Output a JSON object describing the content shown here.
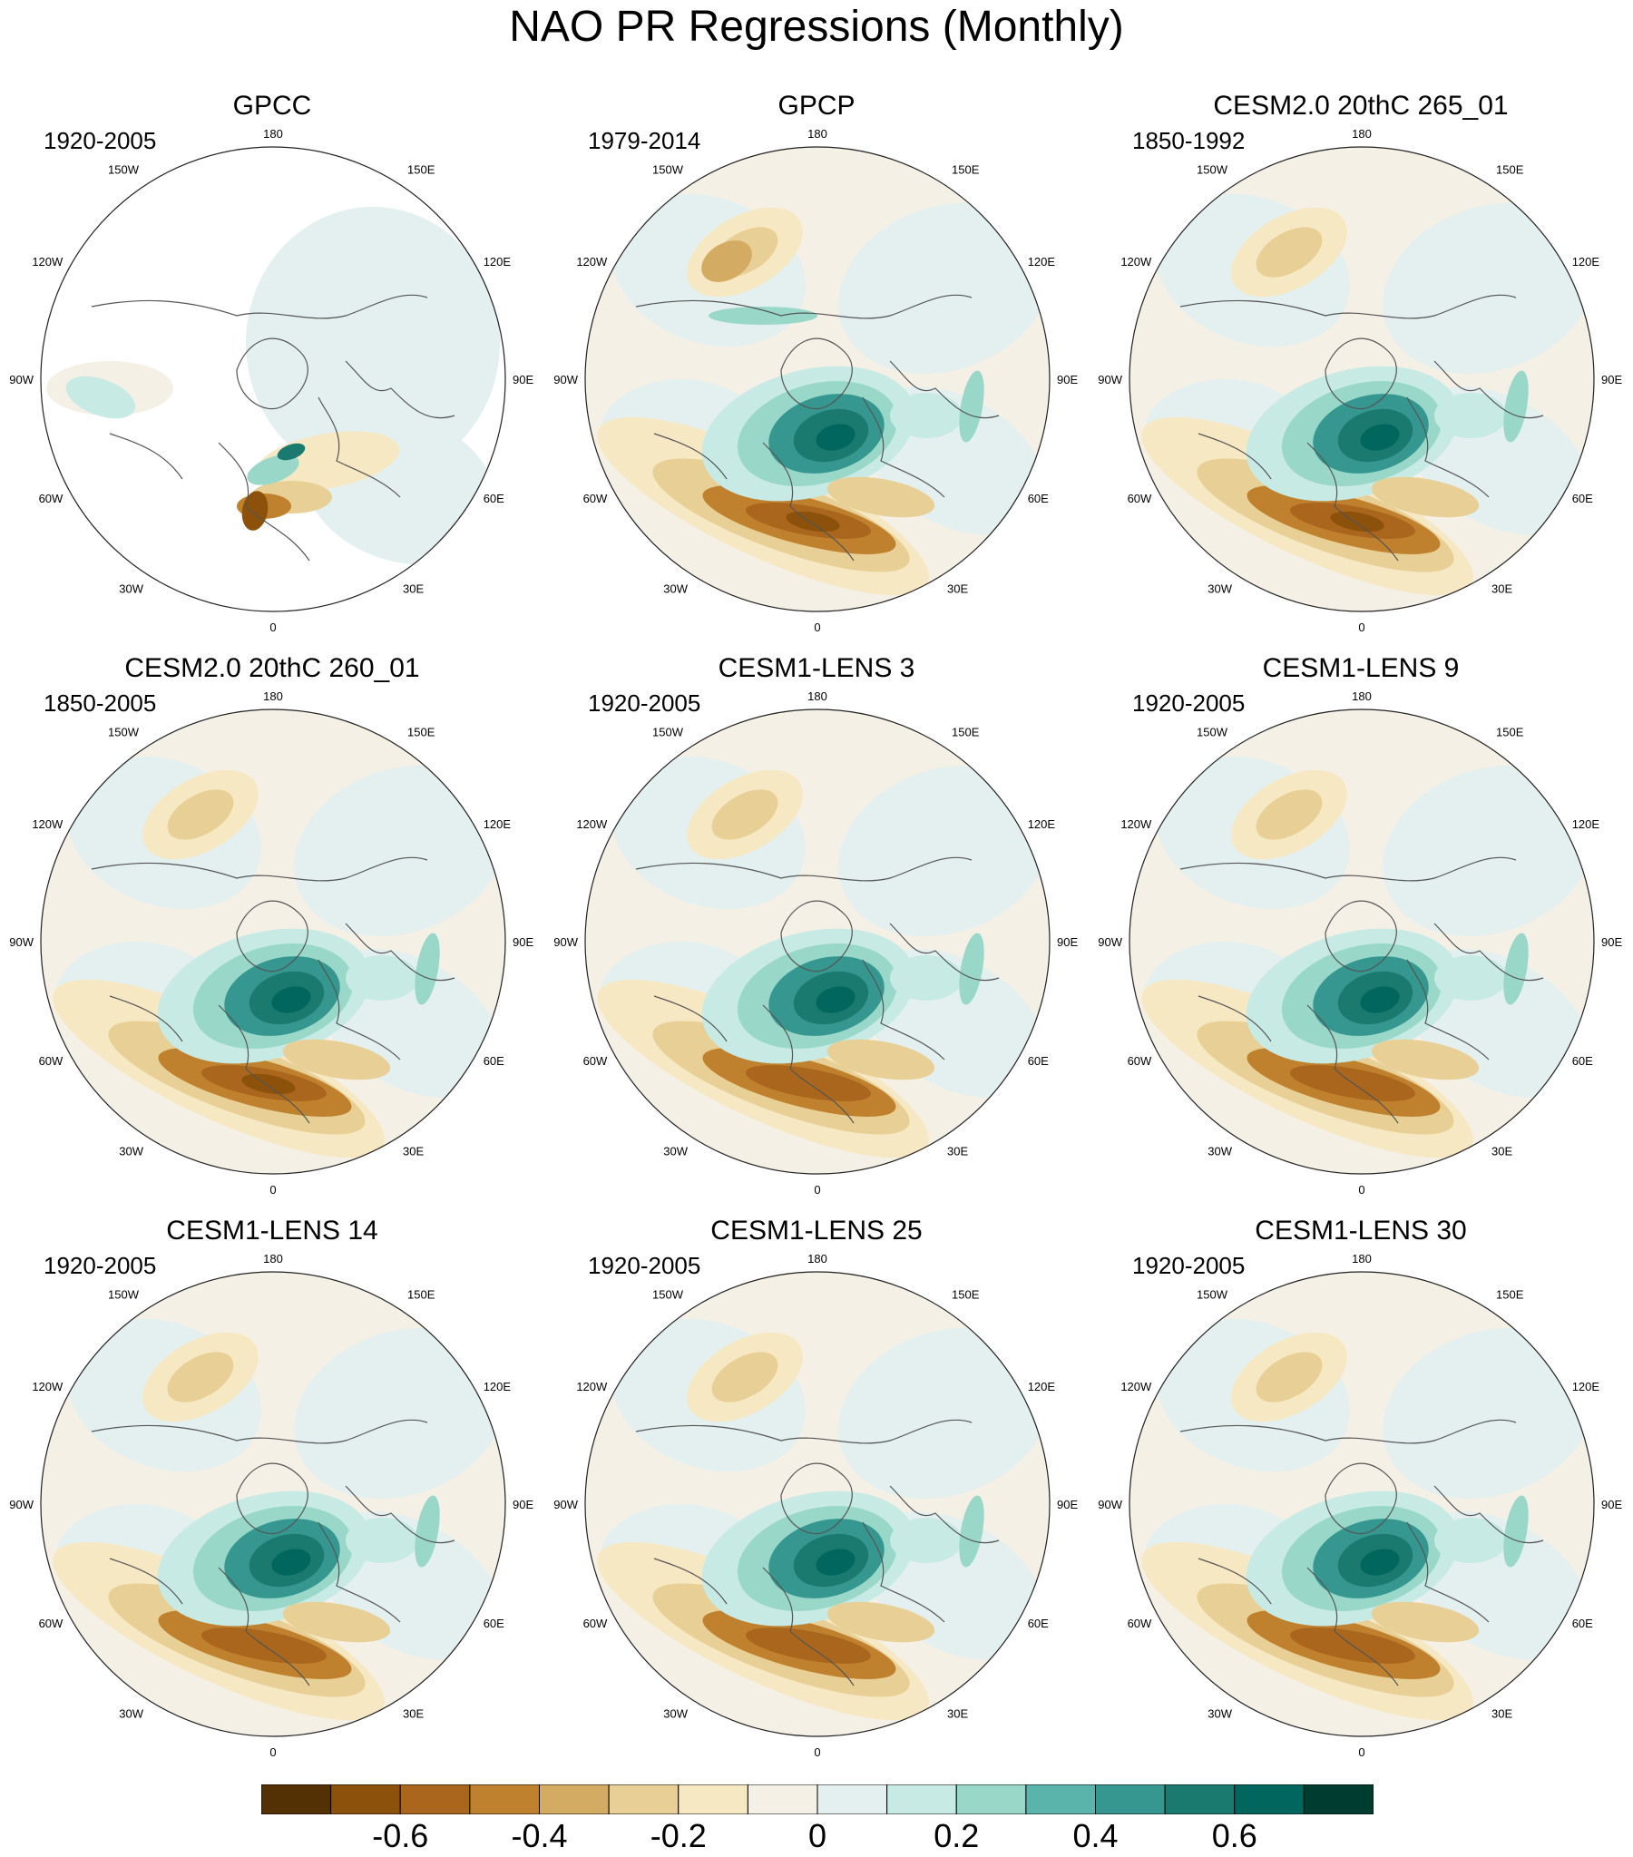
{
  "title": "NAO PR Regressions (Monthly)",
  "panels": [
    {
      "name": "GPCC",
      "period": "1920-2005",
      "style": "obs_land"
    },
    {
      "name": "GPCP",
      "period": "1979-2014",
      "style": "obs_full"
    },
    {
      "name": "CESM2.0 20thC 265_01",
      "period": "1850-1992",
      "style": "model_strong"
    },
    {
      "name": "CESM2.0 20thC 260_01",
      "period": "1850-2005",
      "style": "model_strong"
    },
    {
      "name": "CESM1-LENS 3",
      "period": "1920-2005",
      "style": "model"
    },
    {
      "name": "CESM1-LENS 9",
      "period": "1920-2005",
      "style": "model"
    },
    {
      "name": "CESM1-LENS 14",
      "period": "1920-2005",
      "style": "model"
    },
    {
      "name": "CESM1-LENS 25",
      "period": "1920-2005",
      "style": "model"
    },
    {
      "name": "CESM1-LENS 30",
      "period": "1920-2005",
      "style": "model"
    }
  ],
  "lon_labels": [
    "180",
    "150E",
    "120E",
    "90E",
    "60E",
    "30E",
    "0",
    "30W",
    "60W",
    "90W",
    "120W",
    "150W"
  ],
  "colorbar": {
    "colors": [
      "#543005",
      "#8c510a",
      "#a9661c",
      "#bf812d",
      "#d4ab62",
      "#e8cf95",
      "#f6e8c3",
      "#f5f0e6",
      "#e3f0ef",
      "#c7eae5",
      "#99d8c9",
      "#5ab4ac",
      "#35978f",
      "#1a7a70",
      "#01665e",
      "#003c30"
    ],
    "tick_labels": [
      "-0.6",
      "-0.4",
      "-0.2",
      "0",
      "0.2",
      "0.4",
      "0.6"
    ],
    "tick_values": [
      -0.6,
      -0.4,
      -0.2,
      0,
      0.2,
      0.4,
      0.6
    ],
    "min": -0.8,
    "max": 0.8
  }
}
